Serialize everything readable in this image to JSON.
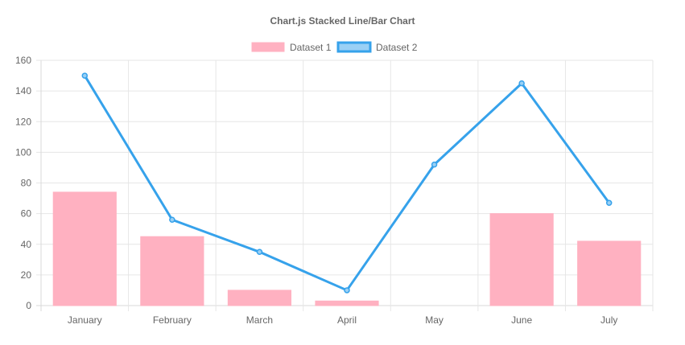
{
  "chart_data": {
    "type": "bar",
    "title": "Chart.js Stacked Line/Bar Chart",
    "categories": [
      "January",
      "February",
      "March",
      "April",
      "May",
      "June",
      "July"
    ],
    "series": [
      {
        "name": "Dataset 1",
        "type": "bar",
        "values": [
          74,
          45,
          10,
          3,
          0,
          60,
          42
        ],
        "color": "#ffb1c1",
        "border_color": "#ff6384"
      },
      {
        "name": "Dataset 2",
        "type": "line",
        "values": [
          150,
          56,
          35,
          10,
          92,
          145,
          67
        ],
        "color": "#36a2eb",
        "fill_color": "#9ad0f5"
      }
    ],
    "ylim": [
      0,
      160
    ],
    "yticks": [
      0,
      20,
      40,
      60,
      80,
      100,
      120,
      140,
      160
    ],
    "grid": true,
    "legend_position": "top"
  }
}
